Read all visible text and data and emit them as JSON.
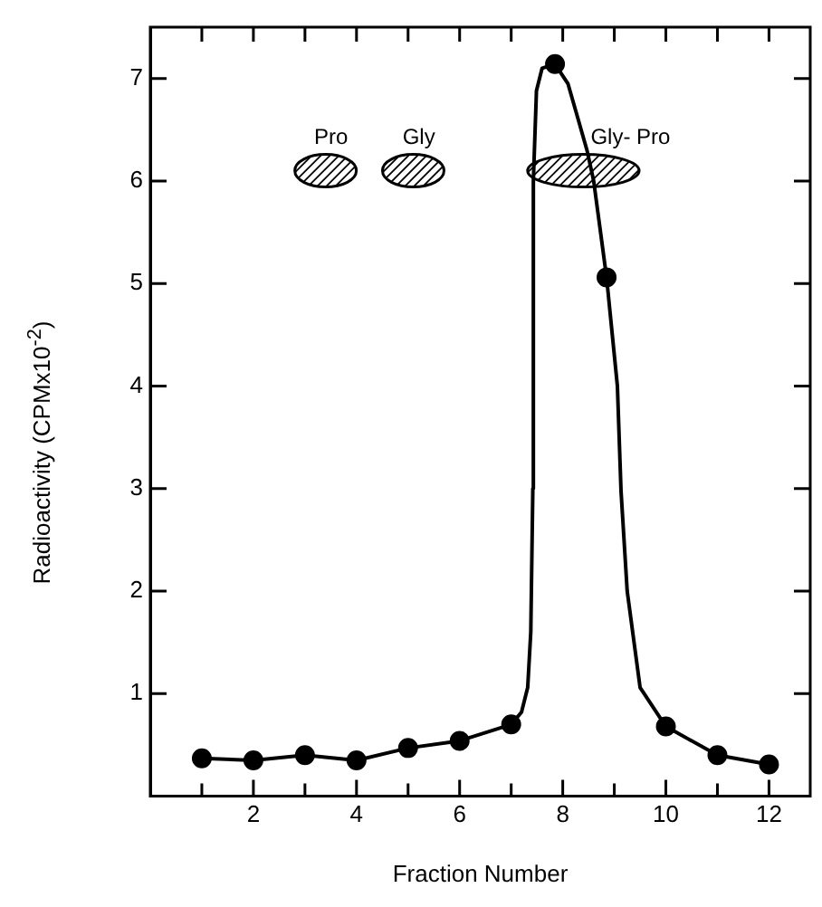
{
  "chart_data": {
    "type": "line",
    "xlabel": "Fraction Number",
    "ylabel": "Radioactivity (CPMx10$^{-2}$)",
    "xlim": [
      0,
      12.8
    ],
    "ylim": [
      0,
      7.5
    ],
    "xticks": [
      {
        "value": 1,
        "label": null
      },
      2,
      {
        "value": 3,
        "label": null
      },
      4,
      {
        "value": 5,
        "label": null
      },
      6,
      {
        "value": 7,
        "label": null
      },
      8,
      {
        "value": 9,
        "label": null
      },
      10,
      {
        "value": 11,
        "label": null
      },
      12
    ],
    "yticks": [
      1,
      2,
      3,
      4,
      5,
      6,
      7
    ],
    "grid": false,
    "legend": false,
    "line_style": "solid",
    "series": [
      {
        "type": "line",
        "color": "#000000",
        "marker": "none",
        "x": [
          1,
          2,
          3,
          4,
          5,
          6,
          7,
          7.2,
          7.32,
          7.38,
          7.42,
          7.43,
          7.49,
          7.6,
          7.85,
          8.1,
          8.3,
          8.47,
          8.6,
          8.85,
          9.06,
          9.13,
          9.25,
          9.5,
          10,
          11,
          12
        ],
        "values": [
          0.37,
          0.35,
          0.4,
          0.35,
          0.47,
          0.54,
          0.7,
          0.82,
          1.06,
          1.6,
          3,
          6,
          6.88,
          7.1,
          7.14,
          6.95,
          6.6,
          6.3,
          6,
          5.06,
          4,
          2.98,
          2,
          1.06,
          0.68,
          0.4,
          0.31
        ]
      },
      {
        "type": "scatter",
        "color": "#000000",
        "marker": "circle",
        "x": [
          1,
          2,
          3,
          4,
          5,
          6,
          7,
          7.85,
          8.85,
          10,
          11,
          12
        ],
        "values": [
          0.37,
          0.35,
          0.4,
          0.35,
          0.47,
          0.54,
          0.7,
          7.14,
          5.06,
          0.68,
          0.4,
          0.31
        ]
      }
    ],
    "annotations": [
      {
        "text": "Pro",
        "x": 3.4,
        "y": 6.1
      },
      {
        "text": "Gly",
        "x": 5.1,
        "y": 6.1
      },
      {
        "text": "Gly- Pro",
        "x": 8.4,
        "y": 6.1
      }
    ]
  }
}
